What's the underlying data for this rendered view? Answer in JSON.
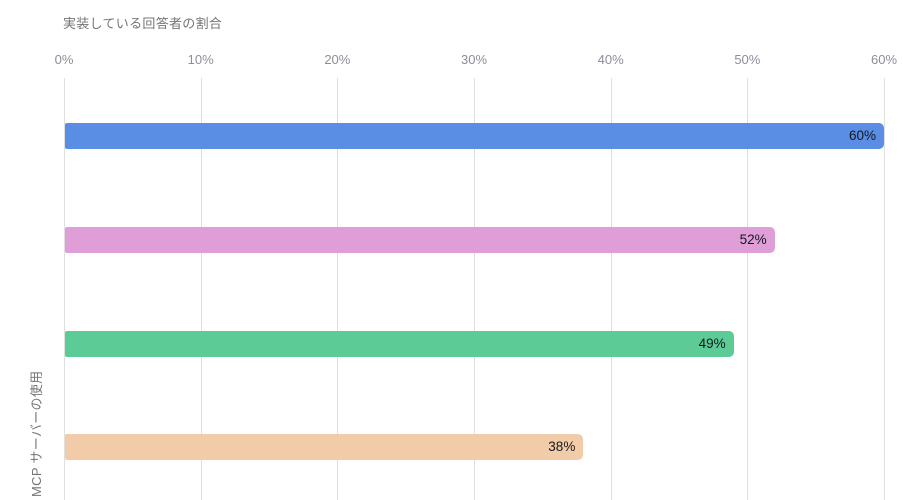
{
  "chart": {
    "title": "実装している回答者の割合",
    "y_axis_label": "MCP サーバーの使用"
  },
  "chart_data": {
    "type": "bar",
    "orientation": "horizontal",
    "title": "実装している回答者の割合",
    "xlabel": "",
    "ylabel": "MCP サーバーの使用",
    "values": [
      60,
      52,
      49,
      38
    ],
    "value_labels": [
      "60%",
      "52%",
      "49%",
      "38%"
    ],
    "bar_colors": [
      "#5a8de4",
      "#df9ed7",
      "#5ccb96",
      "#f2cca8"
    ],
    "xlim": [
      0,
      60
    ],
    "x_ticks": [
      0,
      10,
      20,
      30,
      40,
      50,
      60
    ],
    "x_tick_labels": [
      "0%",
      "10%",
      "20%",
      "30%",
      "40%",
      "50%",
      "60%"
    ],
    "grid": true,
    "gridline_color": "#e0e0e0",
    "value_label_color": "#15181f",
    "axis_text_color": "#8a8f98",
    "title_color": "#757575"
  }
}
